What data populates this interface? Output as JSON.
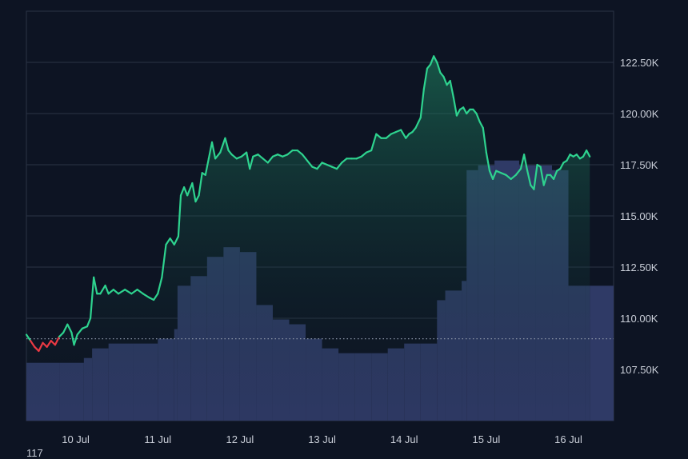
{
  "colors": {
    "background": "#0d1423",
    "grid": "#2a3346",
    "up_line": "#2ed38f",
    "down_line": "#ea3943",
    "volume": "#2f3a66",
    "baseline": "#8a93a6"
  },
  "corner_label": "117",
  "chart_data": {
    "type": "area",
    "x_ticks": [
      "10 Jul",
      "11 Jul",
      "12 Jul",
      "13 Jul",
      "14 Jul",
      "15 Jul",
      "16 Jul"
    ],
    "y_ticks": [
      "107.50K",
      "110.00K",
      "112.50K",
      "115.00K",
      "117.50K",
      "120.00K",
      "122.50K"
    ],
    "y_tick_values": [
      107500,
      110000,
      112500,
      115000,
      117500,
      120000,
      122500
    ],
    "ylim": [
      105000,
      125000
    ],
    "xlim": [
      0,
      7.15
    ],
    "baseline": 109000,
    "grid": true,
    "price": [
      [
        0.0,
        109200
      ],
      [
        0.05,
        108900
      ],
      [
        0.1,
        108600
      ],
      [
        0.15,
        108400
      ],
      [
        0.2,
        108800
      ],
      [
        0.25,
        108600
      ],
      [
        0.3,
        108900
      ],
      [
        0.35,
        108700
      ],
      [
        0.4,
        109100
      ],
      [
        0.45,
        109300
      ],
      [
        0.5,
        109700
      ],
      [
        0.55,
        109300
      ],
      [
        0.58,
        108700
      ],
      [
        0.62,
        109200
      ],
      [
        0.68,
        109500
      ],
      [
        0.74,
        109600
      ],
      [
        0.78,
        110000
      ],
      [
        0.82,
        112000
      ],
      [
        0.86,
        111200
      ],
      [
        0.9,
        111200
      ],
      [
        0.96,
        111600
      ],
      [
        1.0,
        111200
      ],
      [
        1.06,
        111400
      ],
      [
        1.12,
        111200
      ],
      [
        1.2,
        111400
      ],
      [
        1.28,
        111200
      ],
      [
        1.35,
        111400
      ],
      [
        1.42,
        111200
      ],
      [
        1.5,
        111000
      ],
      [
        1.55,
        110900
      ],
      [
        1.6,
        111200
      ],
      [
        1.65,
        112000
      ],
      [
        1.7,
        113600
      ],
      [
        1.75,
        113900
      ],
      [
        1.8,
        113600
      ],
      [
        1.85,
        114000
      ],
      [
        1.88,
        116000
      ],
      [
        1.92,
        116400
      ],
      [
        1.96,
        116000
      ],
      [
        2.02,
        116600
      ],
      [
        2.06,
        115700
      ],
      [
        2.1,
        116000
      ],
      [
        2.14,
        117100
      ],
      [
        2.18,
        117000
      ],
      [
        2.22,
        117800
      ],
      [
        2.26,
        118600
      ],
      [
        2.3,
        117800
      ],
      [
        2.36,
        118100
      ],
      [
        2.42,
        118800
      ],
      [
        2.46,
        118200
      ],
      [
        2.5,
        118000
      ],
      [
        2.56,
        117800
      ],
      [
        2.62,
        117900
      ],
      [
        2.68,
        118100
      ],
      [
        2.72,
        117300
      ],
      [
        2.76,
        117900
      ],
      [
        2.82,
        118000
      ],
      [
        2.88,
        117800
      ],
      [
        2.94,
        117600
      ],
      [
        3.0,
        117900
      ],
      [
        3.06,
        118000
      ],
      [
        3.12,
        117900
      ],
      [
        3.18,
        118000
      ],
      [
        3.24,
        118200
      ],
      [
        3.3,
        118200
      ],
      [
        3.36,
        118000
      ],
      [
        3.42,
        117700
      ],
      [
        3.48,
        117400
      ],
      [
        3.54,
        117300
      ],
      [
        3.6,
        117600
      ],
      [
        3.66,
        117500
      ],
      [
        3.72,
        117400
      ],
      [
        3.78,
        117300
      ],
      [
        3.84,
        117600
      ],
      [
        3.9,
        117800
      ],
      [
        3.96,
        117800
      ],
      [
        4.02,
        117800
      ],
      [
        4.08,
        117900
      ],
      [
        4.14,
        118100
      ],
      [
        4.2,
        118200
      ],
      [
        4.26,
        119000
      ],
      [
        4.32,
        118800
      ],
      [
        4.38,
        118800
      ],
      [
        4.44,
        119000
      ],
      [
        4.5,
        119100
      ],
      [
        4.56,
        119200
      ],
      [
        4.62,
        118800
      ],
      [
        4.66,
        119000
      ],
      [
        4.7,
        119100
      ],
      [
        4.74,
        119300
      ],
      [
        4.8,
        119800
      ],
      [
        4.84,
        121200
      ],
      [
        4.88,
        122200
      ],
      [
        4.92,
        122400
      ],
      [
        4.96,
        122800
      ],
      [
        5.0,
        122500
      ],
      [
        5.04,
        122000
      ],
      [
        5.08,
        121800
      ],
      [
        5.12,
        121400
      ],
      [
        5.16,
        121600
      ],
      [
        5.2,
        120800
      ],
      [
        5.24,
        119900
      ],
      [
        5.28,
        120200
      ],
      [
        5.32,
        120300
      ],
      [
        5.36,
        120000
      ],
      [
        5.4,
        120200
      ],
      [
        5.44,
        120200
      ],
      [
        5.48,
        120000
      ],
      [
        5.52,
        119600
      ],
      [
        5.56,
        119300
      ],
      [
        5.6,
        118100
      ],
      [
        5.64,
        117200
      ],
      [
        5.68,
        116800
      ],
      [
        5.72,
        117200
      ],
      [
        5.78,
        117100
      ],
      [
        5.84,
        117000
      ],
      [
        5.9,
        116800
      ],
      [
        5.96,
        117000
      ],
      [
        6.02,
        117300
      ],
      [
        6.06,
        118000
      ],
      [
        6.1,
        117200
      ],
      [
        6.14,
        116500
      ],
      [
        6.18,
        116300
      ],
      [
        6.22,
        117500
      ],
      [
        6.26,
        117400
      ],
      [
        6.3,
        116500
      ],
      [
        6.34,
        117000
      ],
      [
        6.38,
        117000
      ],
      [
        6.42,
        116800
      ],
      [
        6.46,
        117200
      ],
      [
        6.5,
        117300
      ],
      [
        6.54,
        117600
      ],
      [
        6.58,
        117700
      ],
      [
        6.62,
        118000
      ],
      [
        6.66,
        117900
      ],
      [
        6.7,
        118000
      ],
      [
        6.74,
        117800
      ],
      [
        6.78,
        117900
      ],
      [
        6.82,
        118200
      ],
      [
        6.86,
        117900
      ]
    ],
    "volume": [
      [
        0.0,
        1.2
      ],
      [
        0.4,
        1.2
      ],
      [
        0.7,
        1.3
      ],
      [
        0.8,
        1.5
      ],
      [
        1.0,
        1.6
      ],
      [
        1.3,
        1.6
      ],
      [
        1.6,
        1.7
      ],
      [
        1.8,
        1.9
      ],
      [
        1.84,
        2.8
      ],
      [
        2.0,
        3.0
      ],
      [
        2.2,
        3.4
      ],
      [
        2.4,
        3.6
      ],
      [
        2.6,
        3.5
      ],
      [
        2.8,
        2.4
      ],
      [
        3.0,
        2.1
      ],
      [
        3.2,
        2.0
      ],
      [
        3.4,
        1.7
      ],
      [
        3.6,
        1.5
      ],
      [
        3.8,
        1.4
      ],
      [
        4.0,
        1.4
      ],
      [
        4.2,
        1.4
      ],
      [
        4.4,
        1.5
      ],
      [
        4.6,
        1.6
      ],
      [
        4.8,
        1.6
      ],
      [
        5.0,
        2.5
      ],
      [
        5.1,
        2.7
      ],
      [
        5.3,
        2.9
      ],
      [
        5.36,
        5.2
      ],
      [
        5.5,
        5.3
      ],
      [
        5.7,
        5.4
      ],
      [
        6.0,
        5.3
      ],
      [
        6.2,
        5.3
      ],
      [
        6.4,
        5.2
      ],
      [
        6.6,
        2.8
      ],
      [
        6.8,
        2.8
      ],
      [
        6.86,
        2.8
      ]
    ]
  }
}
